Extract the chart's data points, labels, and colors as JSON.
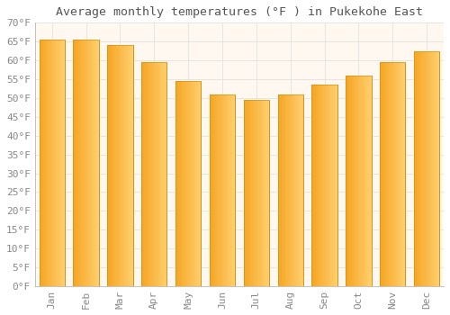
{
  "title": "Average monthly temperatures (°F ) in Pukekohe East",
  "months": [
    "Jan",
    "Feb",
    "Mar",
    "Apr",
    "May",
    "Jun",
    "Jul",
    "Aug",
    "Sep",
    "Oct",
    "Nov",
    "Dec"
  ],
  "values": [
    65.5,
    65.5,
    64.0,
    59.5,
    54.5,
    51.0,
    49.5,
    51.0,
    53.5,
    56.0,
    59.5,
    62.5
  ],
  "bar_color_left": "#F5A623",
  "bar_color_right": "#FFD070",
  "bar_edge_color": "#CC8800",
  "background_color": "#FFFFFF",
  "plot_bg_color": "#FFF8F0",
  "grid_color": "#DDDDDD",
  "ylim": [
    0,
    70
  ],
  "yticks": [
    0,
    5,
    10,
    15,
    20,
    25,
    30,
    35,
    40,
    45,
    50,
    55,
    60,
    65,
    70
  ],
  "title_fontsize": 9.5,
  "tick_fontsize": 8,
  "title_color": "#555555",
  "tick_color": "#888888",
  "bar_width": 0.75
}
